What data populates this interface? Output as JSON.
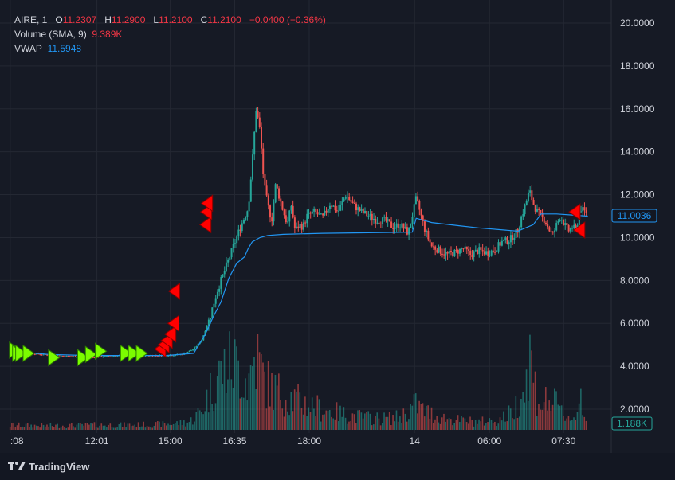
{
  "legend": {
    "symbol": "AIRE, 1",
    "o_label": "O",
    "o_value": "11.2307",
    "h_label": "H",
    "h_value": "11.2900",
    "l_label": "L",
    "l_value": "11.2100",
    "c_label": "C",
    "c_value": "11.2100",
    "change": "−0.0400 (−0.36%)",
    "volume_label": "Volume (SMA, 9)",
    "volume_value": "9.389K",
    "vwap_label": "VWAP",
    "vwap_value": "11.5948"
  },
  "price_badge": "11.0036",
  "volume_badge": "1.188K",
  "footer": {
    "brand": "TradingView",
    "logo_icon": "tradingview-logo-icon"
  },
  "colors": {
    "up": "#26a69a",
    "down": "#ef5350",
    "vwap": "#2196f3",
    "buy_marker": "#7cfc00",
    "sell_marker": "#ff0000"
  },
  "chart_data": {
    "type": "candlestick",
    "y_axis": {
      "ticks": [
        "20.0000",
        "18.0000",
        "16.0000",
        "14.0000",
        "12.0000",
        "10.0000",
        "8.0000",
        "6.0000",
        "4.0000",
        "2.0000"
      ],
      "ylim": [
        0,
        20.4
      ]
    },
    "x_axis": {
      "ticks": [
        {
          "label": ":08",
          "t": 0
        },
        {
          "label": "12:01",
          "t": 22.2
        },
        {
          "label": "15:00",
          "t": 41.0
        },
        {
          "label": "16:35",
          "t": 57.5
        },
        {
          "label": "18:00",
          "t": 76.6
        },
        {
          "label": "14",
          "t": 103.6
        },
        {
          "label": "06:00",
          "t": 122.8
        },
        {
          "label": "07:30",
          "t": 141.8
        }
      ],
      "xlim": [
        -1,
        154
      ]
    },
    "price_path": [
      [
        0,
        4.75
      ],
      [
        5,
        4.6
      ],
      [
        8,
        4.55
      ],
      [
        12,
        4.5
      ],
      [
        16,
        4.45
      ],
      [
        20,
        4.4
      ],
      [
        24,
        4.45
      ],
      [
        28,
        4.5
      ],
      [
        32,
        4.5
      ],
      [
        36,
        4.5
      ],
      [
        40,
        4.5
      ],
      [
        44,
        4.55
      ],
      [
        47,
        4.8
      ],
      [
        49,
        5.2
      ],
      [
        51,
        6.2
      ],
      [
        53,
        7.5
      ],
      [
        55,
        8.5
      ],
      [
        57,
        9.5
      ],
      [
        59,
        10.5
      ],
      [
        61,
        11.4
      ],
      [
        62,
        13.5
      ],
      [
        63,
        16.0
      ],
      [
        64,
        15.0
      ],
      [
        65,
        12.5
      ],
      [
        66,
        11.5
      ],
      [
        67,
        10.8
      ],
      [
        68,
        12.5
      ],
      [
        70,
        11.2
      ],
      [
        71,
        10.6
      ],
      [
        72,
        11.5
      ],
      [
        73,
        10.3
      ],
      [
        74,
        10.6
      ],
      [
        75,
        10.5
      ],
      [
        76,
        11.0
      ],
      [
        78,
        11.2
      ],
      [
        80,
        10.9
      ],
      [
        82,
        11.6
      ],
      [
        84,
        11.2
      ],
      [
        86,
        12.0
      ],
      [
        88,
        11.5
      ],
      [
        90,
        11.2
      ],
      [
        92,
        11.0
      ],
      [
        94,
        10.8
      ],
      [
        96,
        10.8
      ],
      [
        98,
        10.5
      ],
      [
        100,
        10.6
      ],
      [
        102,
        10.2
      ],
      [
        103,
        11.0
      ],
      [
        104,
        11.8
      ],
      [
        105,
        11.2
      ],
      [
        106,
        10.5
      ],
      [
        107,
        10.0
      ],
      [
        108,
        9.6
      ],
      [
        110,
        9.4
      ],
      [
        112,
        9.2
      ],
      [
        114,
        9.3
      ],
      [
        116,
        9.5
      ],
      [
        118,
        9.2
      ],
      [
        120,
        9.4
      ],
      [
        122,
        9.3
      ],
      [
        124,
        9.4
      ],
      [
        126,
        9.8
      ],
      [
        128,
        9.9
      ],
      [
        130,
        10.3
      ],
      [
        131,
        11.0
      ],
      [
        132,
        11.5
      ],
      [
        133,
        12.2
      ],
      [
        134,
        11.6
      ],
      [
        135,
        11.2
      ],
      [
        136,
        11.0
      ],
      [
        137,
        10.8
      ],
      [
        138,
        10.4
      ],
      [
        139,
        10.1
      ],
      [
        140,
        10.6
      ],
      [
        141,
        11.0
      ],
      [
        142,
        10.6
      ],
      [
        143,
        10.3
      ],
      [
        144,
        10.5
      ],
      [
        145,
        10.3
      ],
      [
        146,
        11.4
      ],
      [
        147,
        11.2
      ],
      [
        148,
        11.21
      ]
    ],
    "vwap": [
      [
        0,
        4.7
      ],
      [
        10,
        4.55
      ],
      [
        20,
        4.5
      ],
      [
        30,
        4.5
      ],
      [
        40,
        4.5
      ],
      [
        47,
        4.6
      ],
      [
        50,
        5.5
      ],
      [
        52,
        6.3
      ],
      [
        54,
        7.0
      ],
      [
        56,
        8.1
      ],
      [
        58,
        8.8
      ],
      [
        60,
        9.1
      ],
      [
        61,
        9.5
      ],
      [
        62,
        9.8
      ],
      [
        64,
        10.0
      ],
      [
        66,
        10.1
      ],
      [
        70,
        10.15
      ],
      [
        80,
        10.2
      ],
      [
        90,
        10.22
      ],
      [
        103,
        10.25
      ],
      [
        104,
        10.9
      ],
      [
        106,
        10.8
      ],
      [
        108,
        10.7
      ],
      [
        115,
        10.55
      ],
      [
        120,
        10.45
      ],
      [
        130,
        10.3
      ],
      [
        134,
        10.6
      ],
      [
        136,
        11.1
      ],
      [
        140,
        11.1
      ],
      [
        148,
        11.0
      ]
    ],
    "volume_path": [
      [
        0,
        0.3
      ],
      [
        10,
        0.25
      ],
      [
        20,
        0.3
      ],
      [
        30,
        0.3
      ],
      [
        40,
        0.35
      ],
      [
        46,
        0.5
      ],
      [
        49,
        1.2
      ],
      [
        51,
        2.3
      ],
      [
        53,
        3.4
      ],
      [
        55,
        3.8
      ],
      [
        57,
        4.2
      ],
      [
        59,
        3.8
      ],
      [
        61,
        3.0
      ],
      [
        63,
        4.8
      ],
      [
        65,
        3.2
      ],
      [
        67,
        2.6
      ],
      [
        70,
        2.2
      ],
      [
        75,
        1.7
      ],
      [
        80,
        1.3
      ],
      [
        85,
        1.0
      ],
      [
        90,
        0.8
      ],
      [
        95,
        0.7
      ],
      [
        100,
        0.8
      ],
      [
        102,
        1.2
      ],
      [
        104,
        1.6
      ],
      [
        106,
        1.2
      ],
      [
        110,
        0.8
      ],
      [
        115,
        0.6
      ],
      [
        120,
        0.5
      ],
      [
        125,
        0.6
      ],
      [
        128,
        1.0
      ],
      [
        130,
        1.6
      ],
      [
        131,
        2.8
      ],
      [
        132,
        2.2
      ],
      [
        133,
        5.3
      ],
      [
        134,
        3.3
      ],
      [
        135,
        2.2
      ],
      [
        136,
        1.6
      ],
      [
        138,
        1.9
      ],
      [
        140,
        1.5
      ],
      [
        142,
        0.9
      ],
      [
        144,
        0.8
      ],
      [
        145,
        0.6
      ],
      [
        146,
        2.7
      ],
      [
        147,
        1.2
      ],
      [
        148,
        0.7
      ]
    ],
    "buy_markers": [
      {
        "t": 1.0,
        "price": 4.75
      },
      {
        "t": 1.8,
        "price": 4.6
      },
      {
        "t": 2.6,
        "price": 4.6
      },
      {
        "t": 4.5,
        "price": 4.6
      },
      {
        "t": 11.0,
        "price": 4.4
      },
      {
        "t": 18.5,
        "price": 4.4
      },
      {
        "t": 20.5,
        "price": 4.55
      },
      {
        "t": 23.0,
        "price": 4.7
      },
      {
        "t": 29.5,
        "price": 4.6
      },
      {
        "t": 31.5,
        "price": 4.6
      },
      {
        "t": 33.5,
        "price": 4.6
      }
    ],
    "sell_markers": [
      {
        "t": 38.6,
        "price": 4.8
      },
      {
        "t": 39.5,
        "price": 5.0
      },
      {
        "t": 40.3,
        "price": 5.2
      },
      {
        "t": 41.2,
        "price": 5.5
      },
      {
        "t": 42.0,
        "price": 6.0
      },
      {
        "t": 42.2,
        "price": 7.5
      },
      {
        "t": 50.2,
        "price": 10.6
      },
      {
        "t": 50.4,
        "price": 11.2
      },
      {
        "t": 50.6,
        "price": 11.6
      },
      {
        "t": 144.8,
        "price": 11.2
      },
      {
        "t": 146.0,
        "price": 10.35
      }
    ]
  }
}
